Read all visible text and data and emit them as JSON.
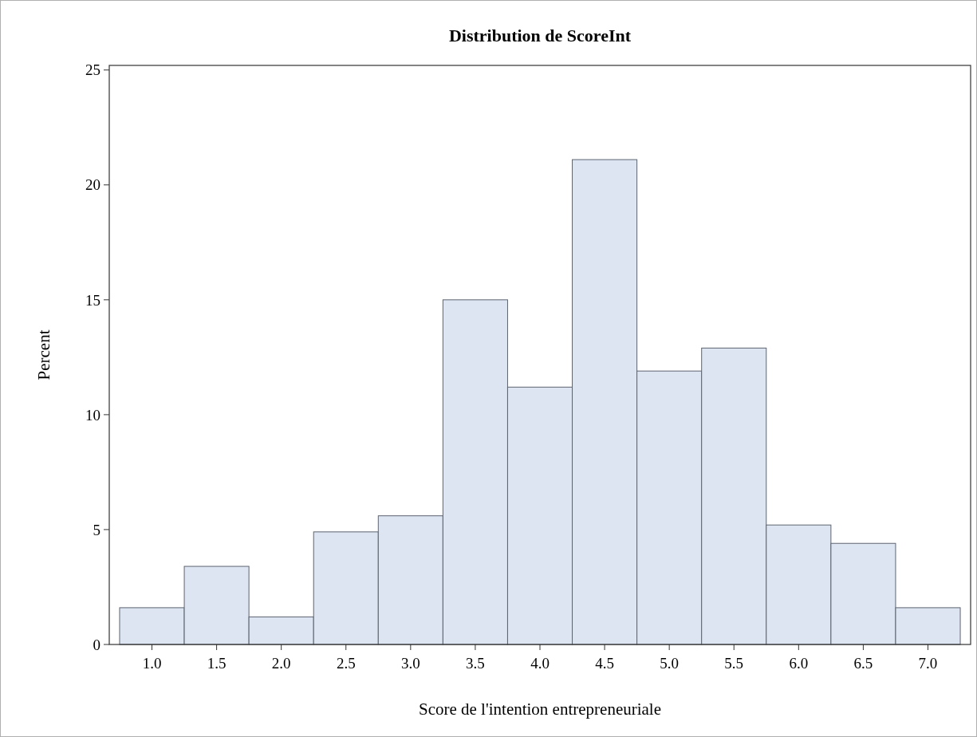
{
  "chart_data": {
    "type": "histogram",
    "title": "Distribution de ScoreInt",
    "xlabel": "Score de l'intention entrepreneuriale",
    "ylabel": "Percent",
    "bins": [
      0.75,
      1.25,
      1.75,
      2.25,
      2.75,
      3.25,
      3.75,
      4.25,
      4.75,
      5.25,
      5.75,
      6.25,
      6.75,
      7.25
    ],
    "values": [
      1.6,
      3.4,
      1.2,
      4.9,
      5.6,
      15.0,
      11.2,
      21.1,
      11.9,
      12.9,
      5.2,
      4.4,
      1.6
    ],
    "color": "#dce5f1",
    "xlim": [
      0.67,
      7.33
    ],
    "xticks": [
      {
        "value": 1,
        "label": "1.0"
      },
      {
        "value": 1.5,
        "label": "1.5"
      },
      {
        "value": 2,
        "label": "2.0"
      },
      {
        "value": 2.5,
        "label": "2.5"
      },
      {
        "value": 3,
        "label": "3.0"
      },
      {
        "value": 3.5,
        "label": "3.5"
      },
      {
        "value": 4,
        "label": "4.0"
      },
      {
        "value": 4.5,
        "label": "4.5"
      },
      {
        "value": 5,
        "label": "5.0"
      },
      {
        "value": 5.5,
        "label": "5.5"
      },
      {
        "value": 6,
        "label": "6.0"
      },
      {
        "value": 6.5,
        "label": "6.5"
      },
      {
        "value": 7,
        "label": "7.0"
      }
    ],
    "ylim": [
      0,
      25.2
    ],
    "yticks": [
      0,
      5,
      10,
      15,
      20,
      25
    ]
  }
}
